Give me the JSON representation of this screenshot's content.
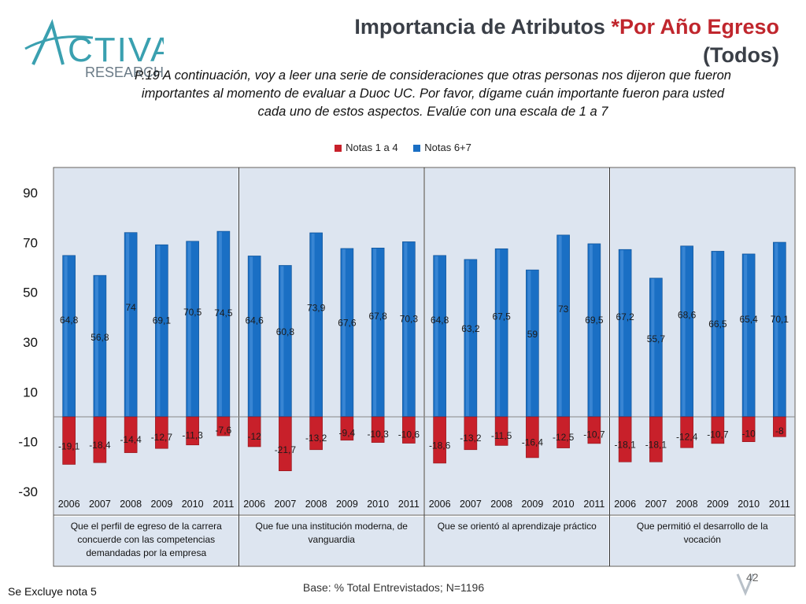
{
  "header": {
    "title_main": "Importancia de Atributos ",
    "title_accent": "*Por Año Egreso",
    "title_line2": "(Todos)",
    "question": "P.19 A continuación, voy a leer una serie de consideraciones que otras personas nos dijeron que fueron importantes al momento de evaluar a Duoc UC. Por favor, dígame cuán importante fueron para usted cada uno de estos aspectos. Evalúe con una escala de 1 a 7"
  },
  "logo": {
    "text1": "ACTIVA",
    "text2": "RESEARCH"
  },
  "colors": {
    "neg": "#c8202a",
    "pos": "#1a6fc4",
    "panel": "#dde5f0",
    "accent": "#c0262d"
  },
  "chart_data": {
    "type": "bar",
    "ylim": [
      -30,
      90
    ],
    "yticks": [
      90,
      70,
      50,
      30,
      10,
      -10,
      -30
    ],
    "categories": [
      "2006",
      "2007",
      "2008",
      "2009",
      "2010",
      "2011"
    ],
    "series_names": [
      "Notas 1 a 4",
      "Notas 6+7"
    ],
    "groups": [
      {
        "label": "Que el perfil de egreso de la carrera concuerde con las competencias demandadas por la empresa",
        "pos": [
          64.8,
          56.8,
          74,
          69.1,
          70.5,
          74.5
        ],
        "neg": [
          -19.1,
          -18.4,
          -14.4,
          -12.7,
          -11.3,
          -7.6
        ],
        "pos_labels": [
          "64,8",
          "56,8",
          "74",
          "69,1",
          "70,5",
          "74,5"
        ],
        "neg_labels": [
          "-19,1",
          "-18,4",
          "-14,4",
          "-12,7",
          "-11,3",
          "-7,6"
        ]
      },
      {
        "label": "Que fue una institución moderna, de vanguardia",
        "pos": [
          64.6,
          60.8,
          73.9,
          67.6,
          67.8,
          70.3
        ],
        "neg": [
          -12,
          -21.7,
          -13.2,
          -9.4,
          -10.3,
          -10.6
        ],
        "pos_labels": [
          "64,6",
          "60,8",
          "73,9",
          "67,6",
          "67,8",
          "70,3"
        ],
        "neg_labels": [
          "-12",
          "-21,7",
          "-13,2",
          "-9,4",
          "-10,3",
          "-10,6"
        ]
      },
      {
        "label": "Que se orientó al aprendizaje práctico",
        "pos": [
          64.8,
          63.2,
          67.5,
          59,
          73,
          69.5
        ],
        "neg": [
          -18.6,
          -13.2,
          -11.5,
          -16.4,
          -12.5,
          -10.7
        ],
        "pos_labels": [
          "64,8",
          "63,2",
          "67,5",
          "59",
          "73",
          "69,5"
        ],
        "neg_labels": [
          "-18,6",
          "-13,2",
          "-11,5",
          "-16,4",
          "-12,5",
          "-10,7"
        ]
      },
      {
        "label": "Que permitió el desarrollo de la vocación",
        "pos": [
          67.2,
          55.7,
          68.6,
          66.5,
          65.4,
          70.1
        ],
        "neg": [
          -18.1,
          -18.1,
          -12.4,
          -10.7,
          -10,
          -8
        ],
        "pos_labels": [
          "67,2",
          "55,7",
          "68,6",
          "66,5",
          "65,4",
          "70,1"
        ],
        "neg_labels": [
          "-18,1",
          "-18,1",
          "-12,4",
          "-10,7",
          "-10",
          "-8"
        ]
      }
    ]
  },
  "footer": {
    "note": "Se Excluye nota 5",
    "base": "Base: % Total Entrevistados; N=1196",
    "page": "42"
  }
}
